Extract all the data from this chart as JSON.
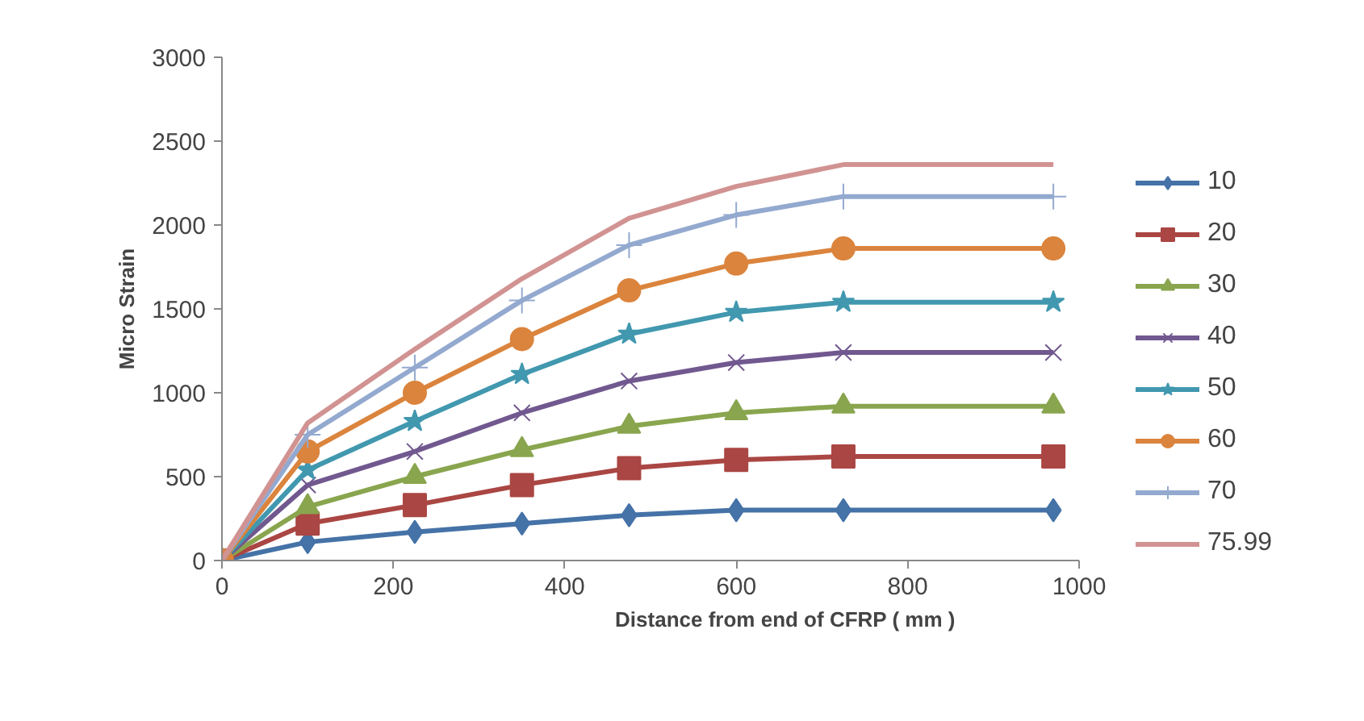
{
  "chart_data": {
    "type": "line",
    "xlabel": "Distance from end of CFRP ( mm )",
    "ylabel": "Micro Strain",
    "x": [
      0,
      100,
      225,
      350,
      475,
      600,
      725,
      970
    ],
    "xlim": [
      0,
      1000
    ],
    "xticks": [
      0,
      200,
      400,
      600,
      800,
      1000
    ],
    "ylim": [
      0,
      3000
    ],
    "yticks": [
      0,
      500,
      1000,
      1500,
      2000,
      2500,
      3000
    ],
    "grid": false,
    "legend": "right",
    "series": [
      {
        "name": "10",
        "color": "#4572a7",
        "marker": "diamond",
        "values": [
          0,
          110,
          170,
          220,
          270,
          300,
          300,
          300
        ]
      },
      {
        "name": "20",
        "color": "#aa4643",
        "marker": "square",
        "values": [
          0,
          220,
          330,
          450,
          550,
          600,
          620,
          620
        ]
      },
      {
        "name": "30",
        "color": "#89a54e",
        "marker": "triangle",
        "values": [
          0,
          320,
          500,
          660,
          800,
          880,
          920,
          920
        ]
      },
      {
        "name": "40",
        "color": "#71588f",
        "marker": "x",
        "values": [
          0,
          450,
          650,
          880,
          1070,
          1180,
          1240,
          1240
        ]
      },
      {
        "name": "50",
        "color": "#4198af",
        "marker": "star",
        "values": [
          0,
          540,
          830,
          1110,
          1350,
          1480,
          1540,
          1540
        ]
      },
      {
        "name": "60",
        "color": "#db843d",
        "marker": "circle",
        "values": [
          0,
          650,
          1000,
          1320,
          1610,
          1770,
          1860,
          1860
        ]
      },
      {
        "name": "70",
        "color": "#93a9cf",
        "marker": "cross",
        "values": [
          0,
          750,
          1150,
          1550,
          1880,
          2060,
          2170,
          2170
        ]
      },
      {
        "name": "75.99",
        "color": "#d19392",
        "marker": "none",
        "values": [
          0,
          820,
          1260,
          1680,
          2040,
          2230,
          2360,
          2360
        ]
      }
    ]
  }
}
